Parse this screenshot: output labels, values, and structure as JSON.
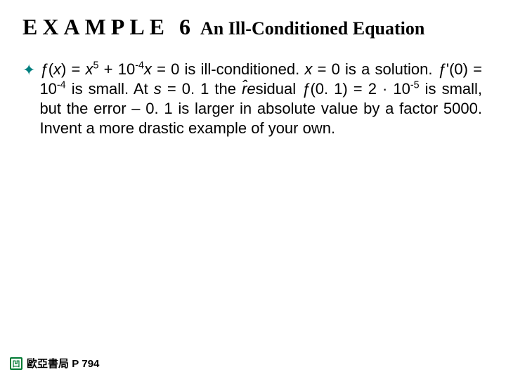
{
  "title": {
    "example_label": "EXAMPLE",
    "example_number": "6",
    "text": "An Ill-Conditioned Equation"
  },
  "bullet": {
    "glyph": "✦",
    "color": "#008080"
  },
  "body": {
    "html": "<i>ƒ</i>(<i>x</i>) = <i>x</i><sup>5</sup> + 10<sup>-4</sup><i>x</i> = 0 is ill-conditioned. <i>x</i> = 0 is a solution. <i>ƒ</i>'(0) = 10<sup>-4</sup> is small. At <i>s</i> = 0. 1 the <i>r̂e</i>sidual <i>ƒ</i>(0. 1) = 2 · 10<sup>-5</sup> is small, but the error – 0. 1 is larger in absolute value by a factor 5000. Invent a more drastic example of your own."
  },
  "footer": {
    "logo_glyph": "凹",
    "publisher": "歐亞書局",
    "page_label": "P",
    "page_number": "794"
  },
  "colors": {
    "bullet": "#008080",
    "logo_border": "#007a33",
    "text": "#000000",
    "background": "#ffffff"
  },
  "fonts": {
    "title_family": "Times New Roman",
    "body_family": "Arial",
    "title_size_pt": 24,
    "body_size_pt": 16,
    "footer_size_pt": 11
  }
}
